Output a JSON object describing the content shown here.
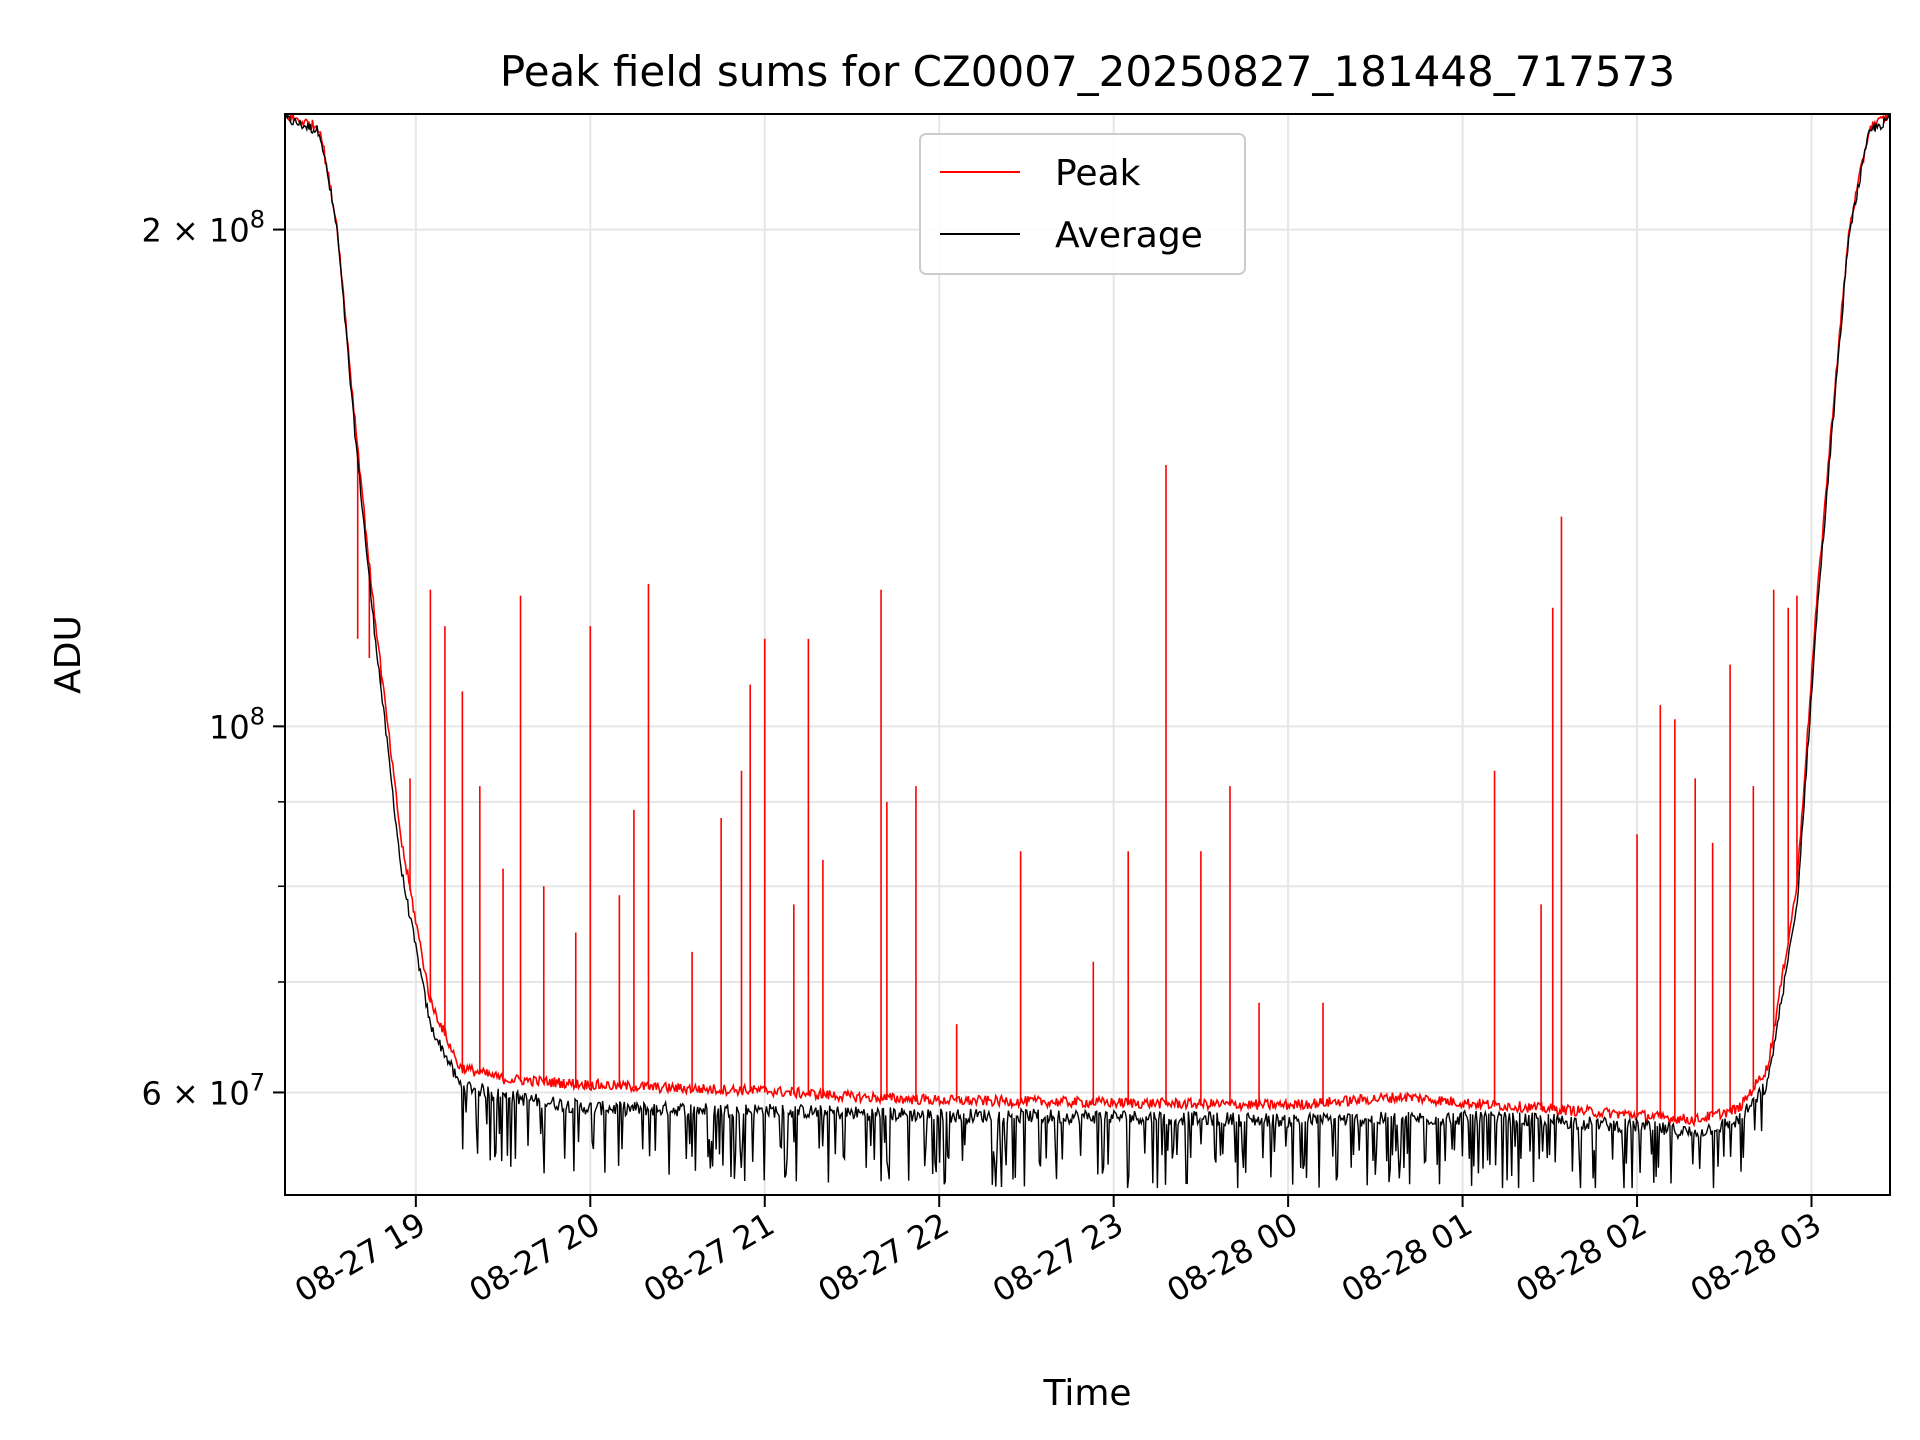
{
  "chart_data": {
    "type": "line",
    "title": "Peak field sums for CZ0007_20250827_181448_717573",
    "xlabel": "Time",
    "ylabel": "ADU",
    "yscale": "log",
    "ylim": [
      52000000,
      235000000
    ],
    "xlim": [
      "2025-08-27 18:15",
      "2025-08-28 03:27"
    ],
    "grid": true,
    "legend": "upper center",
    "x_ticks": [
      {
        "value": "2025-08-27 19:00",
        "label": "08-27 19"
      },
      {
        "value": "2025-08-27 20:00",
        "label": "08-27 20"
      },
      {
        "value": "2025-08-27 21:00",
        "label": "08-27 21"
      },
      {
        "value": "2025-08-27 22:00",
        "label": "08-27 22"
      },
      {
        "value": "2025-08-27 23:00",
        "label": "08-27 23"
      },
      {
        "value": "2025-08-28 00:00",
        "label": "08-28 00"
      },
      {
        "value": "2025-08-28 01:00",
        "label": "08-28 01"
      },
      {
        "value": "2025-08-28 02:00",
        "label": "08-28 02"
      },
      {
        "value": "2025-08-28 03:00",
        "label": "08-28 03"
      }
    ],
    "y_major_ticks": [
      {
        "value": 60000000,
        "mant": "6",
        "exp": "7"
      },
      {
        "value": 100000000,
        "mant": "",
        "exp": "8"
      },
      {
        "value": 200000000,
        "mant": "2",
        "exp": "8"
      }
    ],
    "y_minor_gridlines": [
      60000000,
      70000000,
      80000000,
      90000000,
      100000000,
      200000000
    ],
    "series": [
      {
        "name": "Peak",
        "color": "#ff0000",
        "baseline": [
          [
            "2025-08-27 18:15",
            234000000
          ],
          [
            "2025-08-27 18:27",
            230000000
          ],
          [
            "2025-08-27 18:33",
            200000000
          ],
          [
            "2025-08-27 18:38",
            160000000
          ],
          [
            "2025-08-27 18:45",
            120000000
          ],
          [
            "2025-08-27 18:55",
            85000000
          ],
          [
            "2025-08-27 19:05",
            68000000
          ],
          [
            "2025-08-27 19:15",
            62000000
          ],
          [
            "2025-08-27 19:30",
            61000000
          ],
          [
            "2025-08-27 20:00",
            60500000
          ],
          [
            "2025-08-27 20:30",
            60200000
          ],
          [
            "2025-08-27 21:00",
            60000000
          ],
          [
            "2025-08-27 21:30",
            59500000
          ],
          [
            "2025-08-27 22:00",
            59200000
          ],
          [
            "2025-08-27 23:00",
            59000000
          ],
          [
            "2025-08-28 00:00",
            58800000
          ],
          [
            "2025-08-28 00:40",
            59500000
          ],
          [
            "2025-08-28 01:00",
            59000000
          ],
          [
            "2025-08-28 01:30",
            58500000
          ],
          [
            "2025-08-28 02:00",
            58000000
          ],
          [
            "2025-08-28 02:20",
            57600000
          ],
          [
            "2025-08-28 02:35",
            58500000
          ],
          [
            "2025-08-28 02:45",
            62000000
          ],
          [
            "2025-08-28 02:55",
            80000000
          ],
          [
            "2025-08-28 03:02",
            120000000
          ],
          [
            "2025-08-28 03:08",
            160000000
          ],
          [
            "2025-08-28 03:13",
            200000000
          ],
          [
            "2025-08-28 03:20",
            230000000
          ],
          [
            "2025-08-28 03:27",
            234000000
          ]
        ],
        "spikes": [
          [
            "2025-08-27 18:40",
            113000000
          ],
          [
            "2025-08-27 18:44",
            110000000
          ],
          [
            "2025-08-27 18:48",
            106000000
          ],
          [
            "2025-08-27 18:58",
            93000000
          ],
          [
            "2025-08-27 19:05",
            121000000
          ],
          [
            "2025-08-27 19:10",
            115000000
          ],
          [
            "2025-08-27 19:16",
            105000000
          ],
          [
            "2025-08-27 19:22",
            92000000
          ],
          [
            "2025-08-27 19:30",
            82000000
          ],
          [
            "2025-08-27 19:36",
            120000000
          ],
          [
            "2025-08-27 19:44",
            80000000
          ],
          [
            "2025-08-27 19:55",
            75000000
          ],
          [
            "2025-08-27 20:00",
            115000000
          ],
          [
            "2025-08-27 20:10",
            79000000
          ],
          [
            "2025-08-27 20:15",
            89000000
          ],
          [
            "2025-08-27 20:20",
            122000000
          ],
          [
            "2025-08-27 20:35",
            73000000
          ],
          [
            "2025-08-27 20:45",
            88000000
          ],
          [
            "2025-08-27 20:52",
            94000000
          ],
          [
            "2025-08-27 20:55",
            106000000
          ],
          [
            "2025-08-27 21:00",
            113000000
          ],
          [
            "2025-08-27 21:10",
            78000000
          ],
          [
            "2025-08-27 21:15",
            113000000
          ],
          [
            "2025-08-27 21:20",
            83000000
          ],
          [
            "2025-08-27 21:40",
            121000000
          ],
          [
            "2025-08-27 21:42",
            90000000
          ],
          [
            "2025-08-27 21:52",
            92000000
          ],
          [
            "2025-08-27 22:06",
            66000000
          ],
          [
            "2025-08-27 22:28",
            84000000
          ],
          [
            "2025-08-27 22:53",
            72000000
          ],
          [
            "2025-08-27 23:05",
            84000000
          ],
          [
            "2025-08-27 23:18",
            144000000
          ],
          [
            "2025-08-27 23:30",
            84000000
          ],
          [
            "2025-08-27 23:40",
            92000000
          ],
          [
            "2025-08-27 23:50",
            68000000
          ],
          [
            "2025-08-28 00:12",
            68000000
          ],
          [
            "2025-08-28 01:11",
            94000000
          ],
          [
            "2025-08-28 01:27",
            78000000
          ],
          [
            "2025-08-28 01:31",
            118000000
          ],
          [
            "2025-08-28 01:34",
            134000000
          ],
          [
            "2025-08-28 02:00",
            86000000
          ],
          [
            "2025-08-28 02:08",
            103000000
          ],
          [
            "2025-08-28 02:13",
            101000000
          ],
          [
            "2025-08-28 02:20",
            93000000
          ],
          [
            "2025-08-28 02:26",
            85000000
          ],
          [
            "2025-08-28 02:32",
            109000000
          ],
          [
            "2025-08-28 02:40",
            92000000
          ],
          [
            "2025-08-28 02:47",
            121000000
          ],
          [
            "2025-08-28 02:52",
            118000000
          ],
          [
            "2025-08-28 02:55",
            120000000
          ]
        ]
      },
      {
        "name": "Average",
        "color": "#000000",
        "baseline": [
          [
            "2025-08-27 18:15",
            234000000
          ],
          [
            "2025-08-27 18:27",
            230000000
          ],
          [
            "2025-08-27 18:33",
            200000000
          ],
          [
            "2025-08-27 18:38",
            158000000
          ],
          [
            "2025-08-27 18:45",
            118000000
          ],
          [
            "2025-08-27 18:55",
            82000000
          ],
          [
            "2025-08-27 19:05",
            66000000
          ],
          [
            "2025-08-27 19:15",
            61000000
          ],
          [
            "2025-08-27 19:30",
            60000000
          ],
          [
            "2025-08-27 20:00",
            59000000
          ],
          [
            "2025-08-27 21:00",
            58800000
          ],
          [
            "2025-08-27 22:00",
            58400000
          ],
          [
            "2025-08-27 23:00",
            58300000
          ],
          [
            "2025-08-28 00:00",
            58000000
          ],
          [
            "2025-08-28 01:00",
            58200000
          ],
          [
            "2025-08-28 01:30",
            58000000
          ],
          [
            "2025-08-28 02:00",
            57500000
          ],
          [
            "2025-08-28 02:20",
            57000000
          ],
          [
            "2025-08-28 02:35",
            58000000
          ],
          [
            "2025-08-28 02:45",
            61000000
          ],
          [
            "2025-08-28 02:55",
            78000000
          ],
          [
            "2025-08-28 03:02",
            118000000
          ],
          [
            "2025-08-28 03:08",
            158000000
          ],
          [
            "2025-08-28 03:13",
            200000000
          ],
          [
            "2025-08-28 03:20",
            230000000
          ],
          [
            "2025-08-28 03:27",
            234000000
          ]
        ],
        "dips_min": 52500000
      }
    ]
  }
}
